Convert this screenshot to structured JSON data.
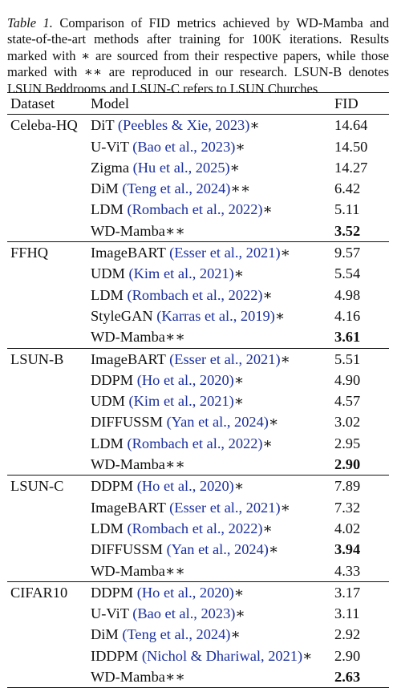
{
  "caption": {
    "label": "Table 1.",
    "text": " Comparison of FID metrics achieved by WD-Mamba and state-of-the-art methods after training for 100K iterations. Results marked with ∗ are sourced from their respective papers, while those marked with ∗∗ are reproduced in our research. LSUN-B denotes LSUN Beddrooms and LSUN-C refers to LSUN Churches"
  },
  "headers": {
    "dataset": "Dataset",
    "model": "Model",
    "fid": "FID"
  },
  "groups": [
    {
      "dataset": "Celeba-HQ",
      "rows": [
        {
          "model": "DiT",
          "cite": "(Peebles & Xie, 2023)",
          "mark": "∗",
          "fid": "14.64",
          "best": false
        },
        {
          "model": "U-ViT",
          "cite": "(Bao et al., 2023)",
          "mark": "∗",
          "fid": "14.50",
          "best": false
        },
        {
          "model": "Zigma",
          "cite": "(Hu et al., 2025)",
          "mark": "∗",
          "fid": "14.27",
          "best": false
        },
        {
          "model": "DiM",
          "cite": "(Teng et al., 2024)",
          "mark": "∗∗",
          "fid": "6.42",
          "best": false
        },
        {
          "model": "LDM",
          "cite": "(Rombach et al., 2022)",
          "mark": "∗",
          "fid": "5.11",
          "best": false
        },
        {
          "model": "WD-Mamba",
          "cite": "",
          "mark": "∗∗",
          "fid": "3.52",
          "best": true
        }
      ]
    },
    {
      "dataset": "FFHQ",
      "rows": [
        {
          "model": "ImageBART",
          "cite": "(Esser et al., 2021)",
          "mark": "∗",
          "fid": "9.57",
          "best": false
        },
        {
          "model": "UDM",
          "cite": "(Kim et al., 2021)",
          "mark": "∗",
          "fid": "5.54",
          "best": false
        },
        {
          "model": "LDM",
          "cite": "(Rombach et al., 2022)",
          "mark": "∗",
          "fid": "4.98",
          "best": false
        },
        {
          "model": "StyleGAN",
          "cite": "(Karras et al., 2019)",
          "mark": "∗",
          "fid": "4.16",
          "best": false
        },
        {
          "model": "WD-Mamba",
          "cite": "",
          "mark": "∗∗",
          "fid": "3.61",
          "best": true
        }
      ]
    },
    {
      "dataset": "LSUN-B",
      "rows": [
        {
          "model": "ImageBART",
          "cite": "(Esser et al., 2021)",
          "mark": "∗",
          "fid": "5.51",
          "best": false
        },
        {
          "model": "DDPM",
          "cite": "(Ho et al., 2020)",
          "mark": "∗",
          "fid": "4.90",
          "best": false
        },
        {
          "model": "UDM",
          "cite": "(Kim et al., 2021)",
          "mark": "∗",
          "fid": "4.57",
          "best": false
        },
        {
          "model": "DIFFUSSM",
          "cite": "(Yan et al., 2024)",
          "mark": "∗",
          "fid": "3.02",
          "best": false
        },
        {
          "model": "LDM",
          "cite": "(Rombach et al., 2022)",
          "mark": "∗",
          "fid": "2.95",
          "best": false
        },
        {
          "model": "WD-Mamba",
          "cite": "",
          "mark": "∗∗",
          "fid": "2.90",
          "best": true
        }
      ]
    },
    {
      "dataset": "LSUN-C",
      "rows": [
        {
          "model": "DDPM",
          "cite": "(Ho et al., 2020)",
          "mark": "∗",
          "fid": "7.89",
          "best": false
        },
        {
          "model": "ImageBART",
          "cite": "(Esser et al., 2021)",
          "mark": "∗",
          "fid": "7.32",
          "best": false
        },
        {
          "model": "LDM",
          "cite": "(Rombach et al., 2022)",
          "mark": "∗",
          "fid": "4.02",
          "best": false
        },
        {
          "model": "DIFFUSSM",
          "cite": "(Yan et al., 2024)",
          "mark": "∗",
          "fid": "3.94",
          "best": true
        },
        {
          "model": "WD-Mamba",
          "cite": "",
          "mark": "∗∗",
          "fid": "4.33",
          "best": false
        }
      ]
    },
    {
      "dataset": "CIFAR10",
      "rows": [
        {
          "model": "DDPM",
          "cite": "(Ho et al., 2020)",
          "mark": "∗",
          "fid": "3.17",
          "best": false
        },
        {
          "model": "U-ViT",
          "cite": "(Bao et al., 2023)",
          "mark": "∗",
          "fid": "3.11",
          "best": false
        },
        {
          "model": "DiM",
          "cite": "(Teng et al., 2024)",
          "mark": "∗",
          "fid": "2.92",
          "best": false
        },
        {
          "model": "IDDPM",
          "cite": "(Nichol & Dhariwal, 2021)",
          "mark": "∗",
          "fid": "2.90",
          "best": false
        },
        {
          "model": "WD-Mamba",
          "cite": "",
          "mark": "∗∗",
          "fid": "2.63",
          "best": true
        }
      ]
    }
  ],
  "colors": {
    "citation": "#1a2fa0",
    "text": "#111111"
  }
}
